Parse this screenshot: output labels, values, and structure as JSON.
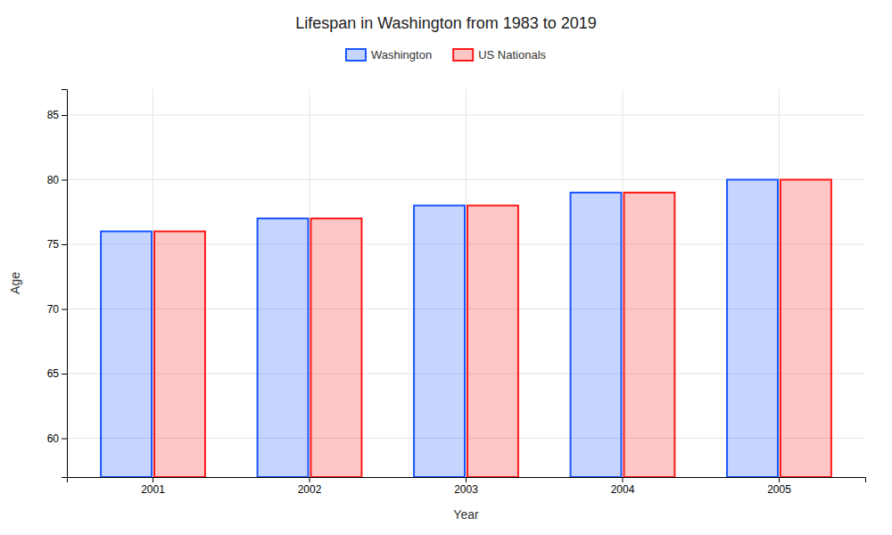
{
  "chart_data": {
    "type": "bar",
    "title": "Lifespan in Washington from 1983 to 2019",
    "xlabel": "Year",
    "ylabel": "Age",
    "categories": [
      "2001",
      "2002",
      "2003",
      "2004",
      "2005"
    ],
    "series": [
      {
        "name": "Washington",
        "color": "#1a56ff",
        "values": [
          76,
          77,
          78,
          79,
          80
        ]
      },
      {
        "name": "US Nationals",
        "color": "#ff1a1a",
        "values": [
          76,
          77,
          78,
          79,
          80
        ]
      }
    ],
    "ylim": [
      57,
      87
    ],
    "yticks": [
      60,
      65,
      70,
      75,
      80,
      85
    ],
    "grid": true,
    "legend": "top"
  }
}
